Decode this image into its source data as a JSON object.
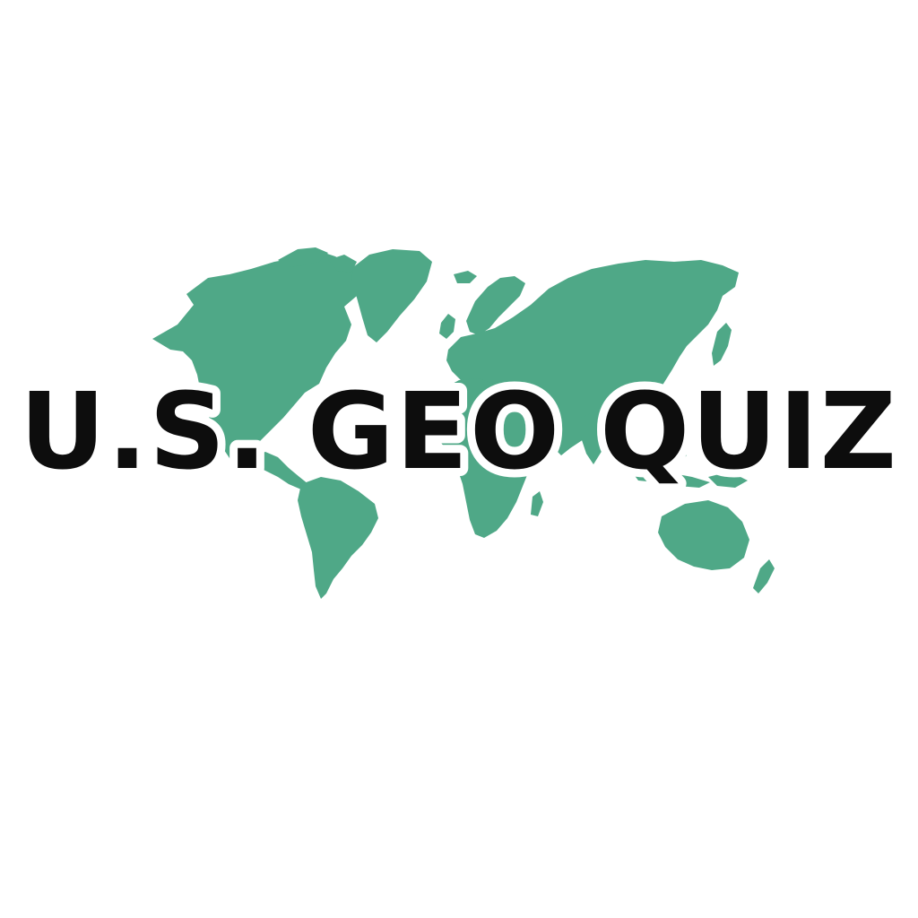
{
  "title": "U.S. GEO QUIZ",
  "colors": {
    "background": "#ffffff",
    "map": "#4fa887",
    "title_fill": "#0d0d0d",
    "title_outline": "#ffffff"
  },
  "icons": {
    "map": "world-map-icon"
  }
}
